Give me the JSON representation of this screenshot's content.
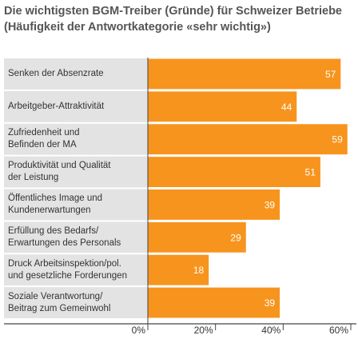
{
  "chart_data": {
    "type": "barh",
    "title": "Die wichtigsten BGM-Treiber (Gründe) für Schweizer Betriebe (Häufigkeit der Antwortkategorie «sehr wichtig»)",
    "categories": [
      "Senken der Absenzrate",
      "Arbeitgeber-Attraktivität",
      "Zufriedenheit und\nBefinden der MA",
      "Produktivität und Qualität\nder Leistung",
      "Öffentliches Image und\nKundenerwartungen",
      "Erfüllung des Bedarfs/\nErwartungen des Personals",
      "Druck Arbeitsinspektion/pol.\nund gesetzliche Forderungen",
      "Soziale Verantwortung/\nBeitrag zum Gemeinwohl"
    ],
    "values": [
      57,
      44,
      59,
      51,
      39,
      29,
      18,
      39
    ],
    "color": "#f7941d",
    "xlim": [
      0,
      60
    ],
    "xticks": [
      {
        "value": 0,
        "label": "0%"
      },
      {
        "value": 20,
        "label": "20%"
      },
      {
        "value": 40,
        "label": "40%"
      },
      {
        "value": 60,
        "label": "60%"
      }
    ]
  }
}
